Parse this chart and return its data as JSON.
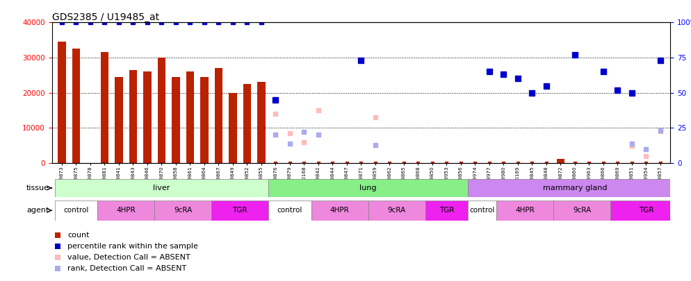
{
  "title": "GDS2385 / U19485_at",
  "samples": [
    "GSM89873",
    "GSM89875",
    "GSM89878",
    "GSM89881",
    "GSM89841",
    "GSM89843",
    "GSM89846",
    "GSM89870",
    "GSM89858",
    "GSM89861",
    "GSM89864",
    "GSM89867",
    "GSM89849",
    "GSM89852",
    "GSM89855",
    "GSM89876",
    "GSM89879",
    "GSM90168",
    "GSM89842",
    "GSM89844",
    "GSM89847",
    "GSM89871",
    "GSM89859",
    "GSM89862",
    "GSM89865",
    "GSM89868",
    "GSM89850",
    "GSM89953",
    "GSM89856",
    "GSM89974",
    "GSM89977",
    "GSM89980",
    "GSM90169",
    "GSM89845",
    "GSM89848",
    "GSM89872",
    "GSM89860",
    "GSM89963",
    "GSM89866",
    "GSM89869",
    "GSM89851",
    "GSM89954",
    "GSM89857"
  ],
  "bar_values": [
    34500,
    32500,
    null,
    31500,
    24500,
    26500,
    26000,
    30000,
    24500,
    26000,
    24500,
    27000,
    20000,
    22500,
    23000,
    null,
    null,
    null,
    null,
    null,
    null,
    null,
    null,
    null,
    null,
    null,
    null,
    null,
    null,
    null,
    null,
    null,
    null,
    null,
    null,
    1200,
    null,
    null,
    null,
    null,
    null,
    null,
    null
  ],
  "count_values": [
    null,
    null,
    null,
    null,
    null,
    null,
    null,
    null,
    null,
    null,
    null,
    null,
    null,
    null,
    null,
    800,
    400,
    400,
    400,
    400,
    400,
    400,
    400,
    400,
    400,
    400,
    400,
    400,
    400,
    800,
    400,
    400,
    800,
    1000,
    400,
    400,
    400,
    800,
    400,
    400,
    400,
    400,
    800
  ],
  "blue_present_pct": [
    100,
    100,
    100,
    100,
    100,
    100,
    100,
    100,
    100,
    100,
    100,
    100,
    100,
    100,
    100,
    null,
    null,
    null,
    null,
    null,
    null,
    null,
    null,
    null,
    null,
    null,
    null,
    null,
    null,
    null,
    null,
    null,
    null,
    null,
    null,
    null,
    null,
    null,
    null,
    null,
    null,
    null,
    null
  ],
  "blue_present_pct_right": [
    null,
    null,
    null,
    null,
    null,
    null,
    null,
    null,
    null,
    null,
    null,
    null,
    null,
    null,
    null,
    45,
    null,
    null,
    null,
    null,
    null,
    73,
    null,
    null,
    null,
    null,
    null,
    null,
    null,
    null,
    65,
    63,
    60,
    50,
    55,
    null,
    77,
    null,
    65,
    52,
    50,
    null,
    73
  ],
  "light_pink_values": [
    null,
    null,
    null,
    null,
    null,
    null,
    null,
    null,
    null,
    null,
    null,
    null,
    null,
    null,
    null,
    14000,
    8500,
    6000,
    15000,
    null,
    null,
    null,
    13000,
    null,
    null,
    null,
    null,
    null,
    null,
    null,
    null,
    null,
    null,
    null,
    null,
    null,
    null,
    null,
    null,
    null,
    5000,
    2000,
    9000
  ],
  "light_blue_pct": [
    null,
    null,
    null,
    null,
    null,
    null,
    null,
    null,
    null,
    null,
    null,
    null,
    null,
    null,
    null,
    20,
    14,
    22,
    20,
    null,
    null,
    null,
    13,
    null,
    null,
    null,
    null,
    null,
    null,
    null,
    null,
    null,
    null,
    null,
    null,
    null,
    null,
    null,
    null,
    null,
    14,
    10,
    23
  ],
  "tissue_groups": [
    {
      "label": "liver",
      "start": 0,
      "end": 14,
      "color": "#ccffcc"
    },
    {
      "label": "lung",
      "start": 15,
      "end": 28,
      "color": "#88ee88"
    },
    {
      "label": "mammary gland",
      "start": 29,
      "end": 43,
      "color": "#cc88ee"
    }
  ],
  "agent_defs": [
    [
      "control",
      0,
      2,
      "#ffffff"
    ],
    [
      "4HPR",
      3,
      6,
      "#ee88dd"
    ],
    [
      "9cRA",
      7,
      10,
      "#ee88dd"
    ],
    [
      "TGR",
      11,
      14,
      "#ee22ee"
    ],
    [
      "control",
      15,
      17,
      "#ffffff"
    ],
    [
      "4HPR",
      18,
      21,
      "#ee88dd"
    ],
    [
      "9cRA",
      22,
      25,
      "#ee88dd"
    ],
    [
      "TGR",
      26,
      28,
      "#ee22ee"
    ],
    [
      "control",
      29,
      30,
      "#ffffff"
    ],
    [
      "4HPR",
      31,
      34,
      "#ee88dd"
    ],
    [
      "9cRA",
      35,
      38,
      "#ee88dd"
    ],
    [
      "TGR",
      39,
      43,
      "#ee22ee"
    ]
  ],
  "bar_color": "#bb2200",
  "blue_color": "#0000cc",
  "light_pink_color": "#ffbbbb",
  "light_blue_color": "#aaaaee"
}
